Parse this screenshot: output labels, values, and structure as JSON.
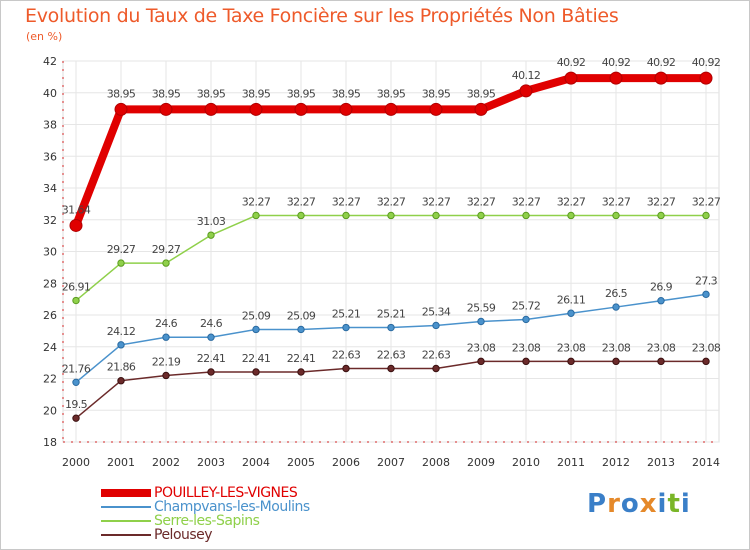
{
  "title": "Evolution du Taux de Taxe Foncière sur les Propriétés Non Bâties",
  "subtitle": "(en %)",
  "logo": {
    "text": "Proxiti",
    "letters": [
      "P",
      "r",
      "o",
      "x",
      "i",
      "t",
      "i"
    ],
    "colors": [
      "#3a7fc8",
      "#e5892a",
      "#3a7fc8",
      "#e5892a",
      "#3a7fc8",
      "#7ab628",
      "#3a7fc8"
    ]
  },
  "chart_data": {
    "type": "line",
    "title": "Evolution du Taux de Taxe Foncière sur les Propriétés Non Bâties",
    "ylabel": "(en %)",
    "xlabel": "",
    "ylim": [
      18,
      42
    ],
    "yticks": [
      "18",
      "20",
      "22",
      "24",
      "26",
      "28",
      "30",
      "32",
      "34",
      "36",
      "38",
      "40",
      "42"
    ],
    "categories": [
      "2000",
      "2001",
      "2002",
      "2003",
      "2004",
      "2005",
      "2006",
      "2007",
      "2008",
      "2009",
      "2010",
      "2011",
      "2012",
      "2013",
      "2014"
    ],
    "grid": true,
    "legend_position": "bottom-left",
    "series": [
      {
        "name": "POUILLEY-LES-VIGNES",
        "color": "#e00000",
        "values": [
          31.64,
          38.95,
          38.95,
          38.95,
          38.95,
          38.95,
          38.95,
          38.95,
          38.95,
          38.95,
          40.12,
          40.92,
          40.92,
          40.92,
          40.92
        ],
        "labels": [
          "31.64",
          "38.95",
          "38.95",
          "38.95",
          "38.95",
          "38.95",
          "38.95",
          "38.95",
          "38.95",
          "38.95",
          "40.12",
          "40.92",
          "40.92",
          "40.92",
          "40.92"
        ]
      },
      {
        "name": "Champvans-les-Moulins",
        "color": "#4a92cc",
        "values": [
          21.76,
          24.12,
          24.6,
          24.6,
          25.09,
          25.09,
          25.21,
          25.21,
          25.34,
          25.59,
          25.72,
          26.11,
          26.5,
          26.9,
          27.3
        ],
        "labels": [
          "21.76",
          "24.12",
          "24.6",
          "24.6",
          "25.09",
          "25.09",
          "25.21",
          "25.21",
          "25.34",
          "25.59",
          "25.72",
          "26.11",
          "26.5",
          "26.9",
          "27.3"
        ]
      },
      {
        "name": "Serre-les-Sapins",
        "color": "#8fd04a",
        "values": [
          26.91,
          29.27,
          29.27,
          31.03,
          32.27,
          32.27,
          32.27,
          32.27,
          32.27,
          32.27,
          32.27,
          32.27,
          32.27,
          32.27,
          32.27
        ],
        "labels": [
          "26.91",
          "29.27",
          "29.27",
          "31.03",
          "32.27",
          "32.27",
          "32.27",
          "32.27",
          "32.27",
          "32.27",
          "32.27",
          "32.27",
          "32.27",
          "32.27",
          "32.27"
        ]
      },
      {
        "name": "Pelousey",
        "color": "#6b2a2a",
        "values": [
          19.5,
          21.86,
          22.19,
          22.41,
          22.41,
          22.41,
          22.63,
          22.63,
          22.63,
          23.08,
          23.08,
          23.08,
          23.08,
          23.08,
          23.08
        ],
        "labels": [
          "19.5",
          "21.86",
          "22.19",
          "22.41",
          "22.41",
          "22.41",
          "22.63",
          "22.63",
          "22.63",
          "23.08",
          "23.08",
          "23.08",
          "23.08",
          "23.08",
          "23.08"
        ]
      }
    ]
  }
}
